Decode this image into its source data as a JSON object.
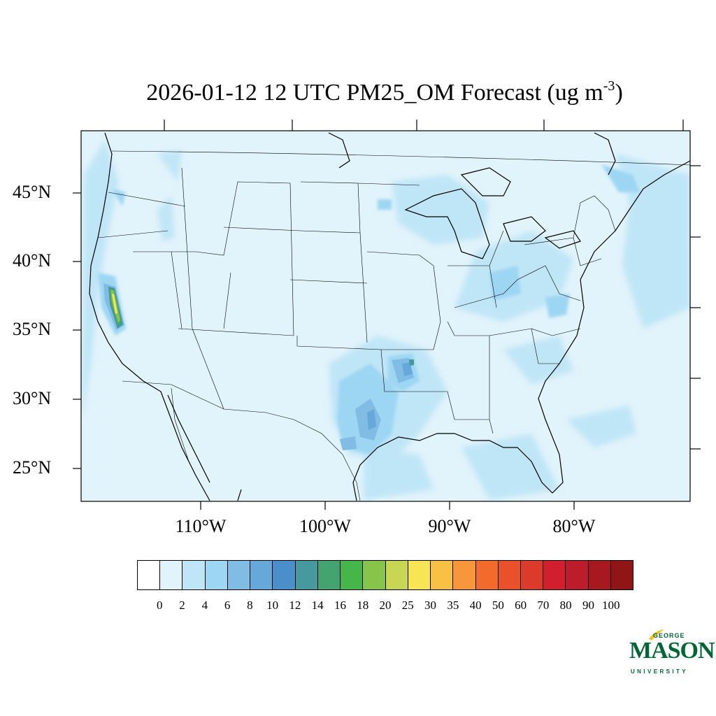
{
  "title": {
    "main": "2026-01-12 12 UTC PM25_OM Forecast (ug m",
    "exponent": "-3",
    "close": ")"
  },
  "axes": {
    "lat_labels": [
      "45°N",
      "40°N",
      "35°N",
      "30°N",
      "25°N"
    ],
    "lon_labels": [
      "110°W",
      "100°W",
      "90°W",
      "80°W"
    ]
  },
  "colorbar": {
    "levels": [
      "0",
      "2",
      "4",
      "6",
      "8",
      "10",
      "12",
      "14",
      "16",
      "18",
      "20",
      "25",
      "30",
      "35",
      "40",
      "50",
      "60",
      "70",
      "80",
      "90",
      "100"
    ],
    "colors": [
      "#ffffff",
      "#e1f3fb",
      "#bfe6f7",
      "#9dd6f3",
      "#80bce4",
      "#67a8db",
      "#4a8fca",
      "#46999c",
      "#43a472",
      "#46b54a",
      "#86c44b",
      "#c7d653",
      "#f8e553",
      "#f8c044",
      "#f7963b",
      "#f26b2d",
      "#e8512b",
      "#dc3a2b",
      "#d11f2d",
      "#bd1c2b",
      "#a8191f",
      "#8f1517"
    ]
  },
  "map": {
    "background_color": "#e1f3fb",
    "feature_colors": {
      "level_4": "#bfe6f7",
      "level_6": "#9dd6f3",
      "level_8": "#80bce4",
      "level_10": "#67a8db",
      "level_14": "#46999c",
      "level_16": "#43a472",
      "level_18": "#86c44b",
      "level_25": "#f8e553"
    }
  },
  "logo": {
    "line1": "GEORGE",
    "line2": "MASON",
    "line3": "UNIVERSITY"
  }
}
